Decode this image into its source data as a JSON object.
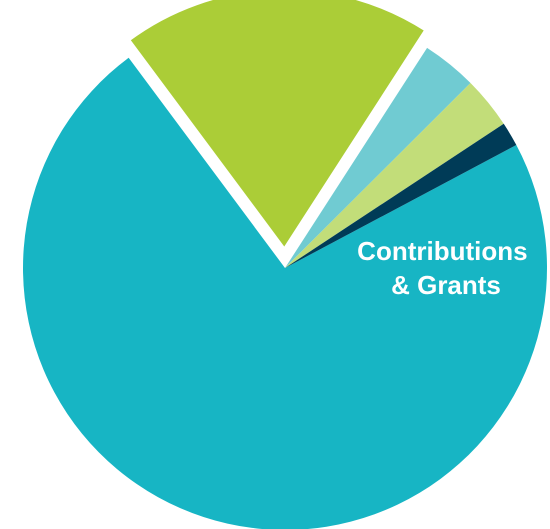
{
  "chart_data": {
    "type": "pie",
    "labels": [
      "",
      "Contributions\n& Grants",
      "",
      "",
      ""
    ],
    "values": [
      72.6,
      19.3,
      3.4,
      3.2,
      1.5
    ],
    "colors": [
      "#17b5c4",
      "#abcd37",
      "#70cbd2",
      "#c2dd79",
      "#003b57"
    ],
    "exploded": [
      false,
      true,
      false,
      false,
      false
    ],
    "slice_labels": [
      {
        "line1": "",
        "line2": ""
      },
      {
        "line1": "Contributions",
        "line2": "& Grants"
      },
      {
        "line1": "",
        "line2": ""
      },
      {
        "line1": "",
        "line2": ""
      },
      {
        "line1": "",
        "line2": ""
      }
    ],
    "title": "",
    "legend": "none"
  }
}
